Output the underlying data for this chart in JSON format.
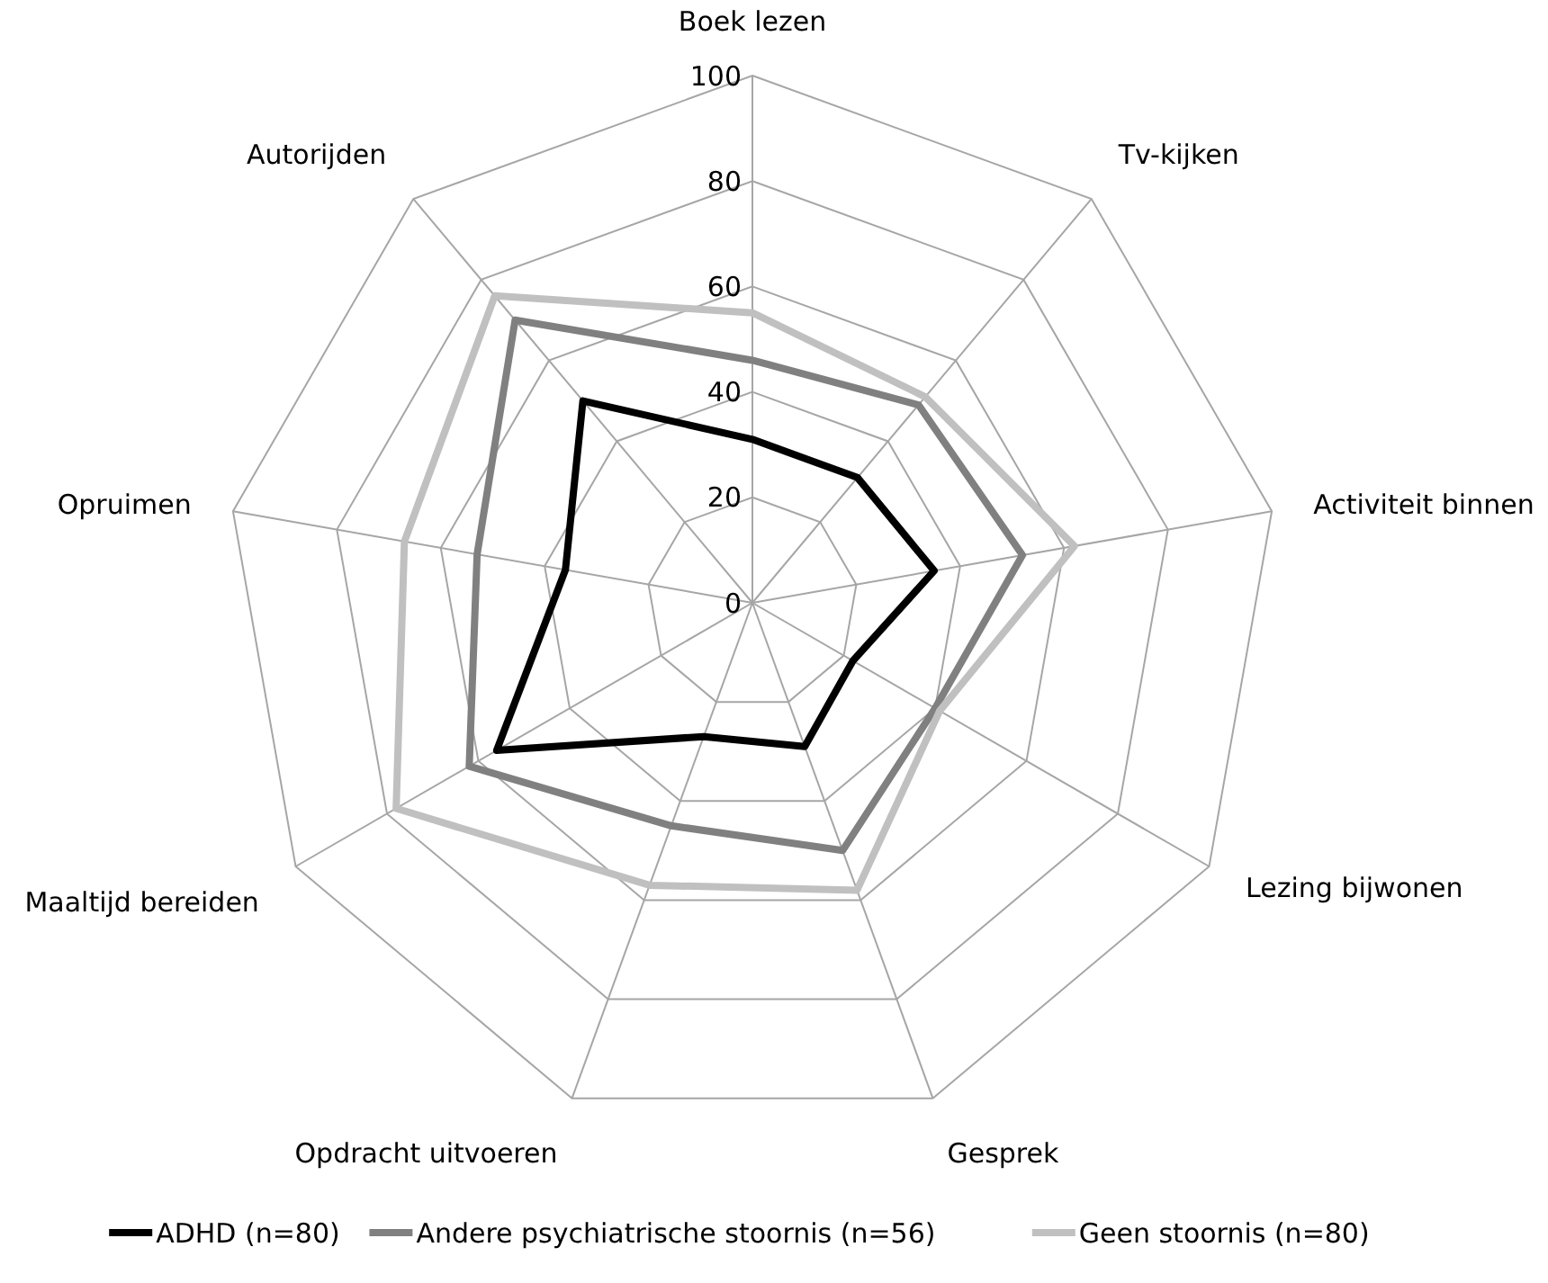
{
  "chart_data": {
    "type": "radar",
    "categories": [
      "Boek lezen",
      "Tv-kijken",
      "Activiteit binnen",
      "Lezing bijwonen",
      "Gesprek",
      "Opdracht uitvoeren",
      "Maaltijd bereiden",
      "Opruimen",
      "Autorijden"
    ],
    "ylim": [
      0,
      100
    ],
    "yticks": [
      0,
      20,
      40,
      60,
      80,
      100
    ],
    "grid": true,
    "legend": "bottom",
    "marker": "none",
    "line_style": "solid",
    "series": [
      {
        "name": "ADHD (n=80)",
        "color": "#000000",
        "values": [
          31,
          31,
          35,
          22,
          29,
          27,
          56,
          36,
          50
        ]
      },
      {
        "name": "Andere psychiatrische stoornis (n=56)",
        "color": "#808080",
        "values": [
          46,
          49,
          52,
          40,
          50,
          45,
          62,
          53,
          70
        ]
      },
      {
        "name": "Geen stoornis (n=80)",
        "color": "#c0c0c0",
        "values": [
          55,
          51,
          62,
          41,
          58,
          57,
          78,
          67,
          76
        ]
      }
    ]
  }
}
